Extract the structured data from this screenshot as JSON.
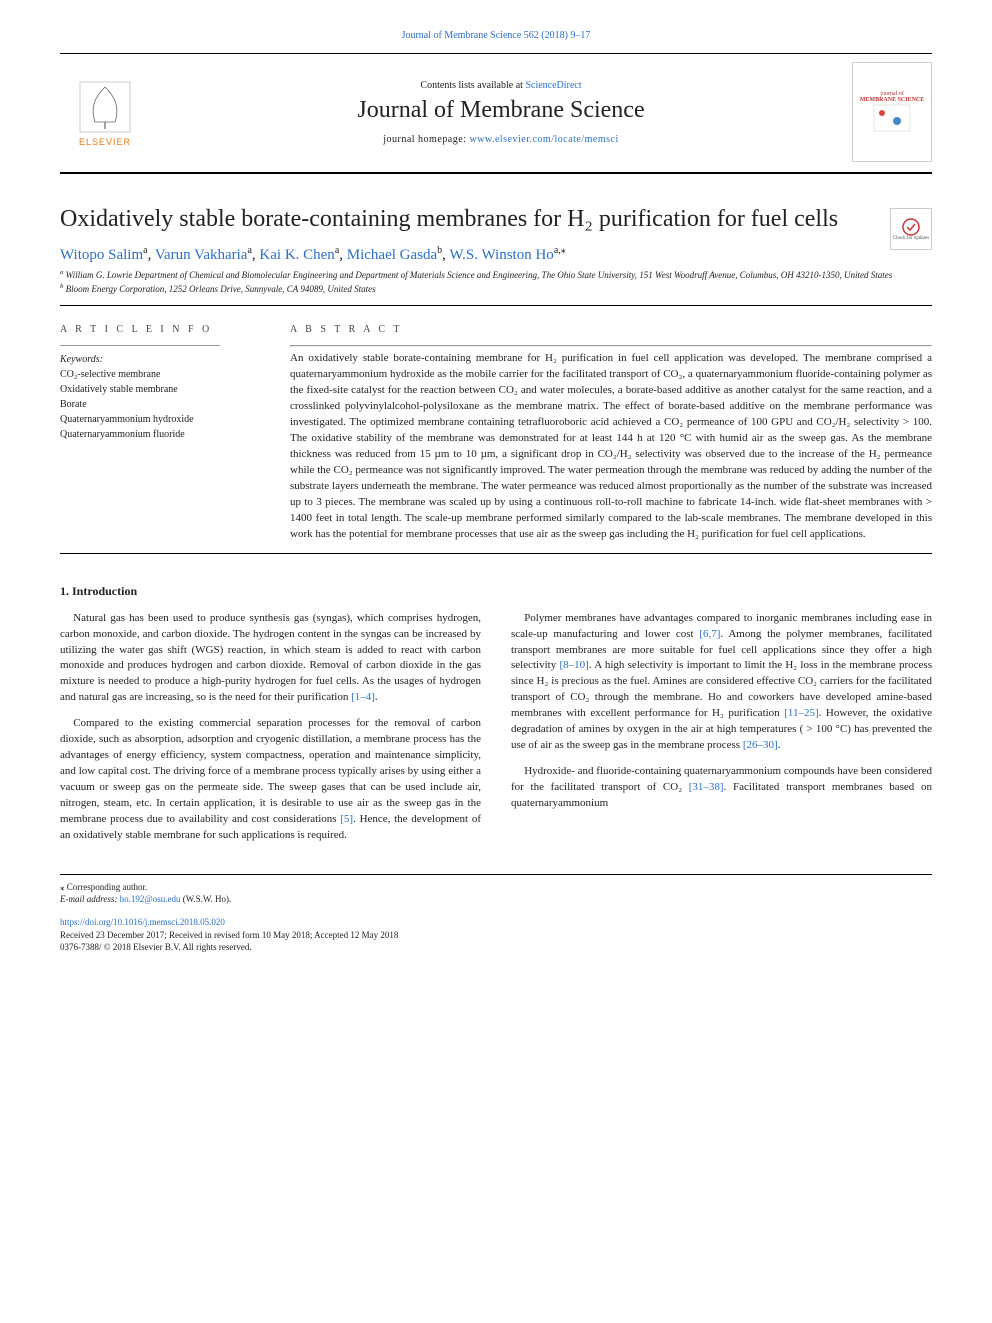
{
  "colors": {
    "link": "#2a6fc9",
    "text": "#222222",
    "rule": "#000000"
  },
  "top_citation": {
    "text": "Journal of Membrane Science 562 (2018) 9–17",
    "href": "#"
  },
  "header": {
    "contents_prefix": "Contents lists available at ",
    "contents_link_text": "ScienceDirect",
    "journal_name": "Journal of Membrane Science",
    "homepage_prefix": "journal homepage: ",
    "homepage_link": "www.elsevier.com/locate/memsci",
    "publisher_logo_label": "ELSEVIER",
    "cover_label_top": "journal of",
    "cover_label_main": "MEMBRANE SCIENCE"
  },
  "check_updates": {
    "label": "Check for updates"
  },
  "title": "Oxidatively stable borate-containing membranes for H₂ purification for fuel cells",
  "authors": [
    {
      "name": "Witopo Salim",
      "aff": "a"
    },
    {
      "name": "Varun Vakharia",
      "aff": "a"
    },
    {
      "name": "Kai K. Chen",
      "aff": "a"
    },
    {
      "name": "Michael Gasda",
      "aff": "b"
    },
    {
      "name": "W.S. Winston Ho",
      "aff": "a,",
      "corr": true
    }
  ],
  "affiliations": {
    "a": "William G. Lowrie Department of Chemical and Biomolecular Engineering and Department of Materials Science and Engineering, The Ohio State University, 151 West Woodruff Avenue, Columbus, OH 43210-1350, United States",
    "b": "Bloom Energy Corporation, 1252 Orleans Drive, Sunnyvale, CA 94089, United States"
  },
  "article_info": {
    "label": "A R T I C L E  I N F O",
    "keywords_label": "Keywords:",
    "keywords": [
      "CO₂-selective membrane",
      "Oxidatively stable membrane",
      "Borate",
      "Quaternaryammonium hydroxide",
      "Quaternaryammonium fluoride"
    ]
  },
  "abstract": {
    "label": "A B S T R A C T",
    "text": "An oxidatively stable borate-containing membrane for H₂ purification in fuel cell application was developed. The membrane comprised a quaternaryammonium hydroxide as the mobile carrier for the facilitated transport of CO₂, a quaternaryammonium fluoride-containing polymer as the fixed-site catalyst for the reaction between CO₂ and water molecules, a borate-based additive as another catalyst for the same reaction, and a crosslinked polyvinylalcohol-polysiloxane as the membrane matrix. The effect of borate-based additive on the membrane performance was investigated. The optimized membrane containing tetrafluoroboric acid achieved a CO₂ permeance of 100 GPU and CO₂/H₂ selectivity > 100. The oxidative stability of the membrane was demonstrated for at least 144 h at 120 °C with humid air as the sweep gas. As the membrane thickness was reduced from 15 µm to 10 µm, a significant drop in CO₂/H₂ selectivity was observed due to the increase of the H₂ permeance while the CO₂ permeance was not significantly improved. The water permeation through the membrane was reduced by adding the number of the substrate layers underneath the membrane. The water permeance was reduced almost proportionally as the number of the substrate was increased up to 3 pieces. The membrane was scaled up by using a continuous roll-to-roll machine to fabricate 14-inch. wide flat-sheet membranes with > 1400 feet in total length. The scale-up membrane performed similarly compared to the lab-scale membranes. The membrane developed in this work has the potential for membrane processes that use air as the sweep gas including the H₂ purification for fuel cell applications."
  },
  "introduction": {
    "heading": "1. Introduction",
    "paragraphs": [
      {
        "text": "Natural gas has been used to produce synthesis gas (syngas), which comprises hydrogen, carbon monoxide, and carbon dioxide. The hydrogen content in the syngas can be increased by utilizing the water gas shift (WGS) reaction, in which steam is added to react with carbon monoxide and produces hydrogen and carbon dioxide. Removal of carbon dioxide in the gas mixture is needed to produce a high-purity hydrogen for fuel cells. As the usages of hydrogen and natural gas are increasing, so is the need for their purification ",
        "ref": "[1–4]",
        "tail": "."
      },
      {
        "text": "Compared to the existing commercial separation processes for the removal of carbon dioxide, such as absorption, adsorption and cryogenic distillation, a membrane process has the advantages of energy efficiency, system compactness, operation and maintenance simplicity, and low capital cost. The driving force of a membrane process typically arises by using either a vacuum or sweep gas on the permeate side. The sweep gases that can be used include air, nitrogen, steam, etc. In certain application, it is desirable to use air as the sweep gas in the membrane process due to availability and cost considerations ",
        "ref": "[5]",
        "tail": ". Hence, the development of an oxidatively stable membrane for such applications is required."
      },
      {
        "text": "Polymer membranes have advantages compared to inorganic membranes including ease in scale-up manufacturing and lower cost ",
        "ref": "[6,7]",
        "tail": ". Among the polymer membranes, facilitated transport membranes are more suitable for fuel cell applications since they offer a high selectivity ",
        "ref2": "[8–10]",
        "tail2": ". A high selectivity is important to limit the H₂ loss in the membrane process since H₂ is precious as the fuel. Amines are considered effective CO₂ carriers for the facilitated transport of CO₂ through the membrane. Ho and coworkers have developed amine-based membranes with excellent performance for H₂ purification ",
        "ref3": "[11–25]",
        "tail3": ". However, the oxidative degradation of amines by oxygen in the air at high temperatures ( > 100 °C) has prevented the use of air as the sweep gas in the membrane process ",
        "ref4": "[26–30]",
        "tail4": "."
      },
      {
        "text": "Hydroxide- and fluoride-containing quaternaryammonium compounds have been considered for the facilitated transport of CO₂ ",
        "ref": "[31–38]",
        "tail": ". Facilitated transport membranes based on quaternaryammonium"
      }
    ]
  },
  "footer": {
    "corr_label": "⁎ Corresponding author.",
    "email_label": "E-mail address: ",
    "email": "ho.192@osu.edu",
    "email_person": " (W.S.W. Ho).",
    "doi": "https://doi.org/10.1016/j.memsci.2018.05.020",
    "received": "Received 23 December 2017; Received in revised form 10 May 2018; Accepted 12 May 2018",
    "issn": "0376-7388/ © 2018 Elsevier B.V. All rights reserved."
  }
}
